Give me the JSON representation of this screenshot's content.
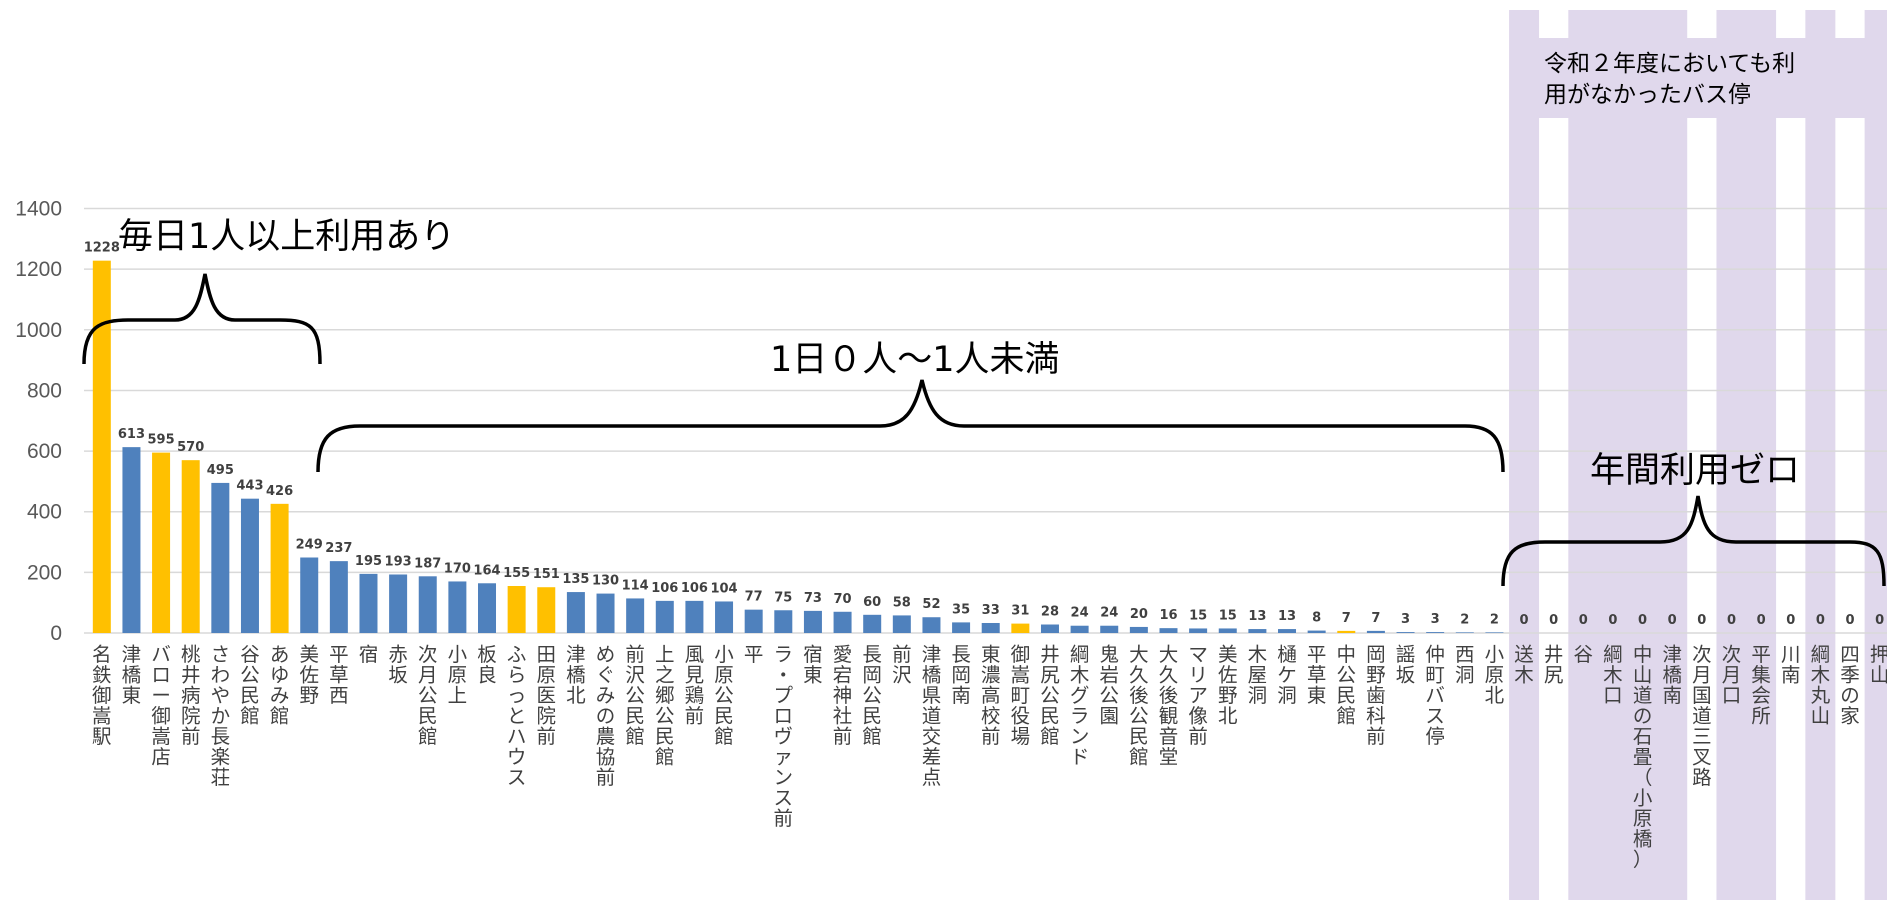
{
  "chart_data": {
    "type": "bar",
    "ylim": [
      0,
      1400
    ],
    "yticks": [
      0,
      200,
      400,
      600,
      800,
      1000,
      1200,
      1400
    ],
    "grid": true,
    "colors": {
      "blue": "#4f81bd",
      "yellow": "#ffc000",
      "zone": "#e0d8ec",
      "grid": "#d9d9d9",
      "bracket": "#000000"
    },
    "bars": [
      {
        "label": "名鉄御嵩駅",
        "value": 1228,
        "color": "yellow"
      },
      {
        "label": "津橋東",
        "value": 613,
        "color": "blue"
      },
      {
        "label": "バロー御嵩店",
        "value": 595,
        "color": "yellow"
      },
      {
        "label": "桃井病院前",
        "value": 570,
        "color": "yellow"
      },
      {
        "label": "さわやか長楽荘",
        "value": 495,
        "color": "blue"
      },
      {
        "label": "谷公民館",
        "value": 443,
        "color": "blue"
      },
      {
        "label": "あゆみ館",
        "value": 426,
        "color": "yellow"
      },
      {
        "label": "美佐野",
        "value": 249,
        "color": "blue"
      },
      {
        "label": "平草西",
        "value": 237,
        "color": "blue"
      },
      {
        "label": "宿",
        "value": 195,
        "color": "blue"
      },
      {
        "label": "赤坂",
        "value": 193,
        "color": "blue"
      },
      {
        "label": "次月公民館",
        "value": 187,
        "color": "blue"
      },
      {
        "label": "小原上",
        "value": 170,
        "color": "blue"
      },
      {
        "label": "板良",
        "value": 164,
        "color": "blue"
      },
      {
        "label": "ふらっとハウス",
        "value": 155,
        "color": "yellow"
      },
      {
        "label": "田原医院前",
        "value": 151,
        "color": "yellow"
      },
      {
        "label": "津橋北",
        "value": 135,
        "color": "blue"
      },
      {
        "label": "めぐみの農協前",
        "value": 130,
        "color": "blue"
      },
      {
        "label": "前沢公民館",
        "value": 114,
        "color": "blue"
      },
      {
        "label": "上之郷公民館",
        "value": 106,
        "color": "blue"
      },
      {
        "label": "風見鶏前",
        "value": 106,
        "color": "blue"
      },
      {
        "label": "小原公民館",
        "value": 104,
        "color": "blue"
      },
      {
        "label": "平",
        "value": 77,
        "color": "blue"
      },
      {
        "label": "ラ・プロヴァンス前",
        "value": 75,
        "color": "blue"
      },
      {
        "label": "宿東",
        "value": 73,
        "color": "blue"
      },
      {
        "label": "愛宕神社前",
        "value": 70,
        "color": "blue"
      },
      {
        "label": "長岡公民館",
        "value": 60,
        "color": "blue"
      },
      {
        "label": "前沢",
        "value": 58,
        "color": "blue"
      },
      {
        "label": "津橋県道交差点",
        "value": 52,
        "color": "blue"
      },
      {
        "label": "長岡南",
        "value": 35,
        "color": "blue"
      },
      {
        "label": "東濃高校前",
        "value": 33,
        "color": "blue"
      },
      {
        "label": "御嵩町役場",
        "value": 31,
        "color": "yellow"
      },
      {
        "label": "井尻公民館",
        "value": 28,
        "color": "blue"
      },
      {
        "label": "綱木グランド",
        "value": 24,
        "color": "blue"
      },
      {
        "label": "鬼岩公園",
        "value": 24,
        "color": "blue"
      },
      {
        "label": "大久後公民館",
        "value": 20,
        "color": "blue"
      },
      {
        "label": "大久後観音堂",
        "value": 16,
        "color": "blue"
      },
      {
        "label": "マリア像前",
        "value": 15,
        "color": "blue"
      },
      {
        "label": "美佐野北",
        "value": 15,
        "color": "blue"
      },
      {
        "label": "木屋洞",
        "value": 13,
        "color": "blue"
      },
      {
        "label": "樋ケ洞",
        "value": 13,
        "color": "blue"
      },
      {
        "label": "平草東",
        "value": 8,
        "color": "blue"
      },
      {
        "label": "中公民館",
        "value": 7,
        "color": "yellow"
      },
      {
        "label": "岡野歯科前",
        "value": 7,
        "color": "blue"
      },
      {
        "label": "謡坂",
        "value": 3,
        "color": "blue"
      },
      {
        "label": "仲町バス停",
        "value": 3,
        "color": "blue"
      },
      {
        "label": "西洞",
        "value": 2,
        "color": "blue"
      },
      {
        "label": "小原北",
        "value": 2,
        "color": "blue"
      },
      {
        "label": "送木",
        "value": 0,
        "color": "blue"
      },
      {
        "label": "井尻",
        "value": 0,
        "color": "blue"
      },
      {
        "label": "谷",
        "value": 0,
        "color": "blue"
      },
      {
        "label": "綱木口",
        "value": 0,
        "color": "blue"
      },
      {
        "label": "中山道の石畳（小原橋）",
        "value": 0,
        "color": "blue"
      },
      {
        "label": "津橋南",
        "value": 0,
        "color": "blue"
      },
      {
        "label": "次月国道三叉路",
        "value": 0,
        "color": "blue"
      },
      {
        "label": "次月口",
        "value": 0,
        "color": "blue"
      },
      {
        "label": "平集会所",
        "value": 0,
        "color": "blue"
      },
      {
        "label": "川南",
        "value": 0,
        "color": "blue"
      },
      {
        "label": "綱木丸山",
        "value": 0,
        "color": "blue"
      },
      {
        "label": "四季の家",
        "value": 0,
        "color": "blue"
      },
      {
        "label": "押山",
        "value": 0,
        "color": "blue"
      }
    ],
    "zero_zone_highlight_indices": [
      48,
      50,
      51,
      52,
      53,
      55,
      56,
      58,
      60
    ],
    "annotations": {
      "daily": "毎日1人以上利用あり",
      "under_one": "1日０人～1人未満",
      "zero": "年間利用ゼロ",
      "note_line1": "令和２年度においても利",
      "note_line2": "用がなかったバス停"
    }
  }
}
